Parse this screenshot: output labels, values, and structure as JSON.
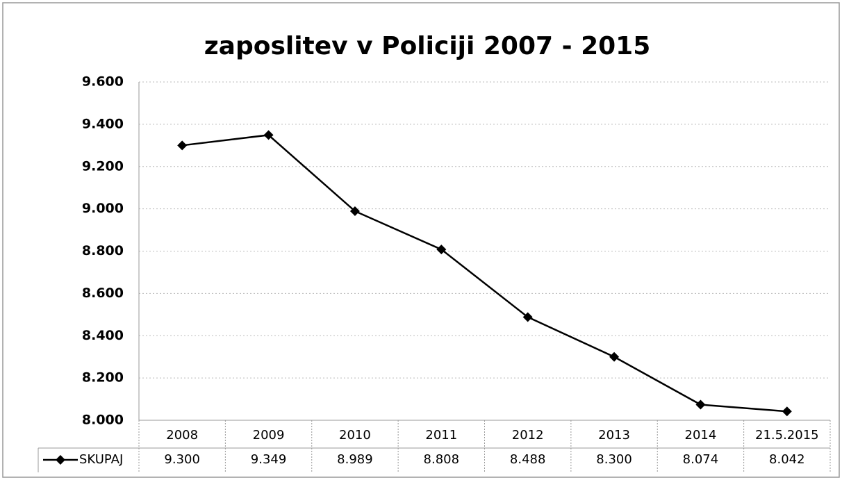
{
  "chart_data": {
    "type": "line",
    "title": "zaposlitev v Policiji 2007 - 2015",
    "categories": [
      "2008",
      "2009",
      "2010",
      "2011",
      "2012",
      "2013",
      "2014",
      "21.5.2015"
    ],
    "series": [
      {
        "name": "SKUPAJ",
        "color": "#000000",
        "values": [
          9300,
          9349,
          8989,
          8808,
          8488,
          8300,
          8074,
          8042
        ],
        "value_labels": [
          "9.300",
          "9.349",
          "8.989",
          "8.808",
          "8.488",
          "8.300",
          "8.074",
          "8.042"
        ]
      }
    ],
    "ylim": [
      8000,
      9600
    ],
    "yticks": [
      {
        "value": 8000,
        "label": "8.000"
      },
      {
        "value": 8200,
        "label": "8.200"
      },
      {
        "value": 8400,
        "label": "8.400"
      },
      {
        "value": 8600,
        "label": "8.600"
      },
      {
        "value": 8800,
        "label": "8.800"
      },
      {
        "value": 9000,
        "label": "9.000"
      },
      {
        "value": 9200,
        "label": "9.200"
      },
      {
        "value": 9400,
        "label": "9.400"
      },
      {
        "value": 9600,
        "label": "9.600"
      }
    ],
    "grid": true,
    "legend": "table"
  }
}
